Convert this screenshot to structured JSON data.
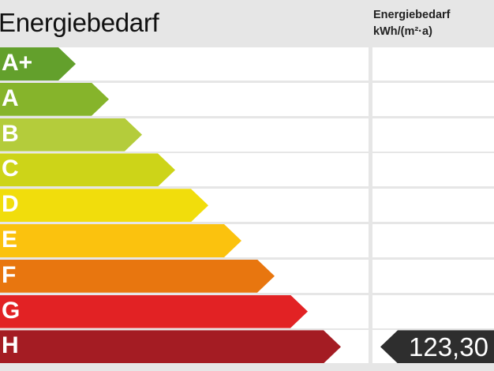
{
  "header": {
    "title": "Energiebedarf",
    "column_title": "Energiebedarf",
    "column_unit": "kWh/(m²·a)"
  },
  "classes": [
    {
      "label": "A+",
      "color": "#63a02c"
    },
    {
      "label": "A",
      "color": "#86b42b"
    },
    {
      "label": "B",
      "color": "#b4cc3b"
    },
    {
      "label": "C",
      "color": "#cdd418"
    },
    {
      "label": "D",
      "color": "#f1dd0c"
    },
    {
      "label": "E",
      "color": "#fbc20e"
    },
    {
      "label": "F",
      "color": "#e8760f"
    },
    {
      "label": "G",
      "color": "#e22224"
    },
    {
      "label": "H",
      "color": "#a41c23"
    }
  ],
  "indicator": {
    "class": "H",
    "value": "123,30",
    "color": "#2e2e2e"
  }
}
